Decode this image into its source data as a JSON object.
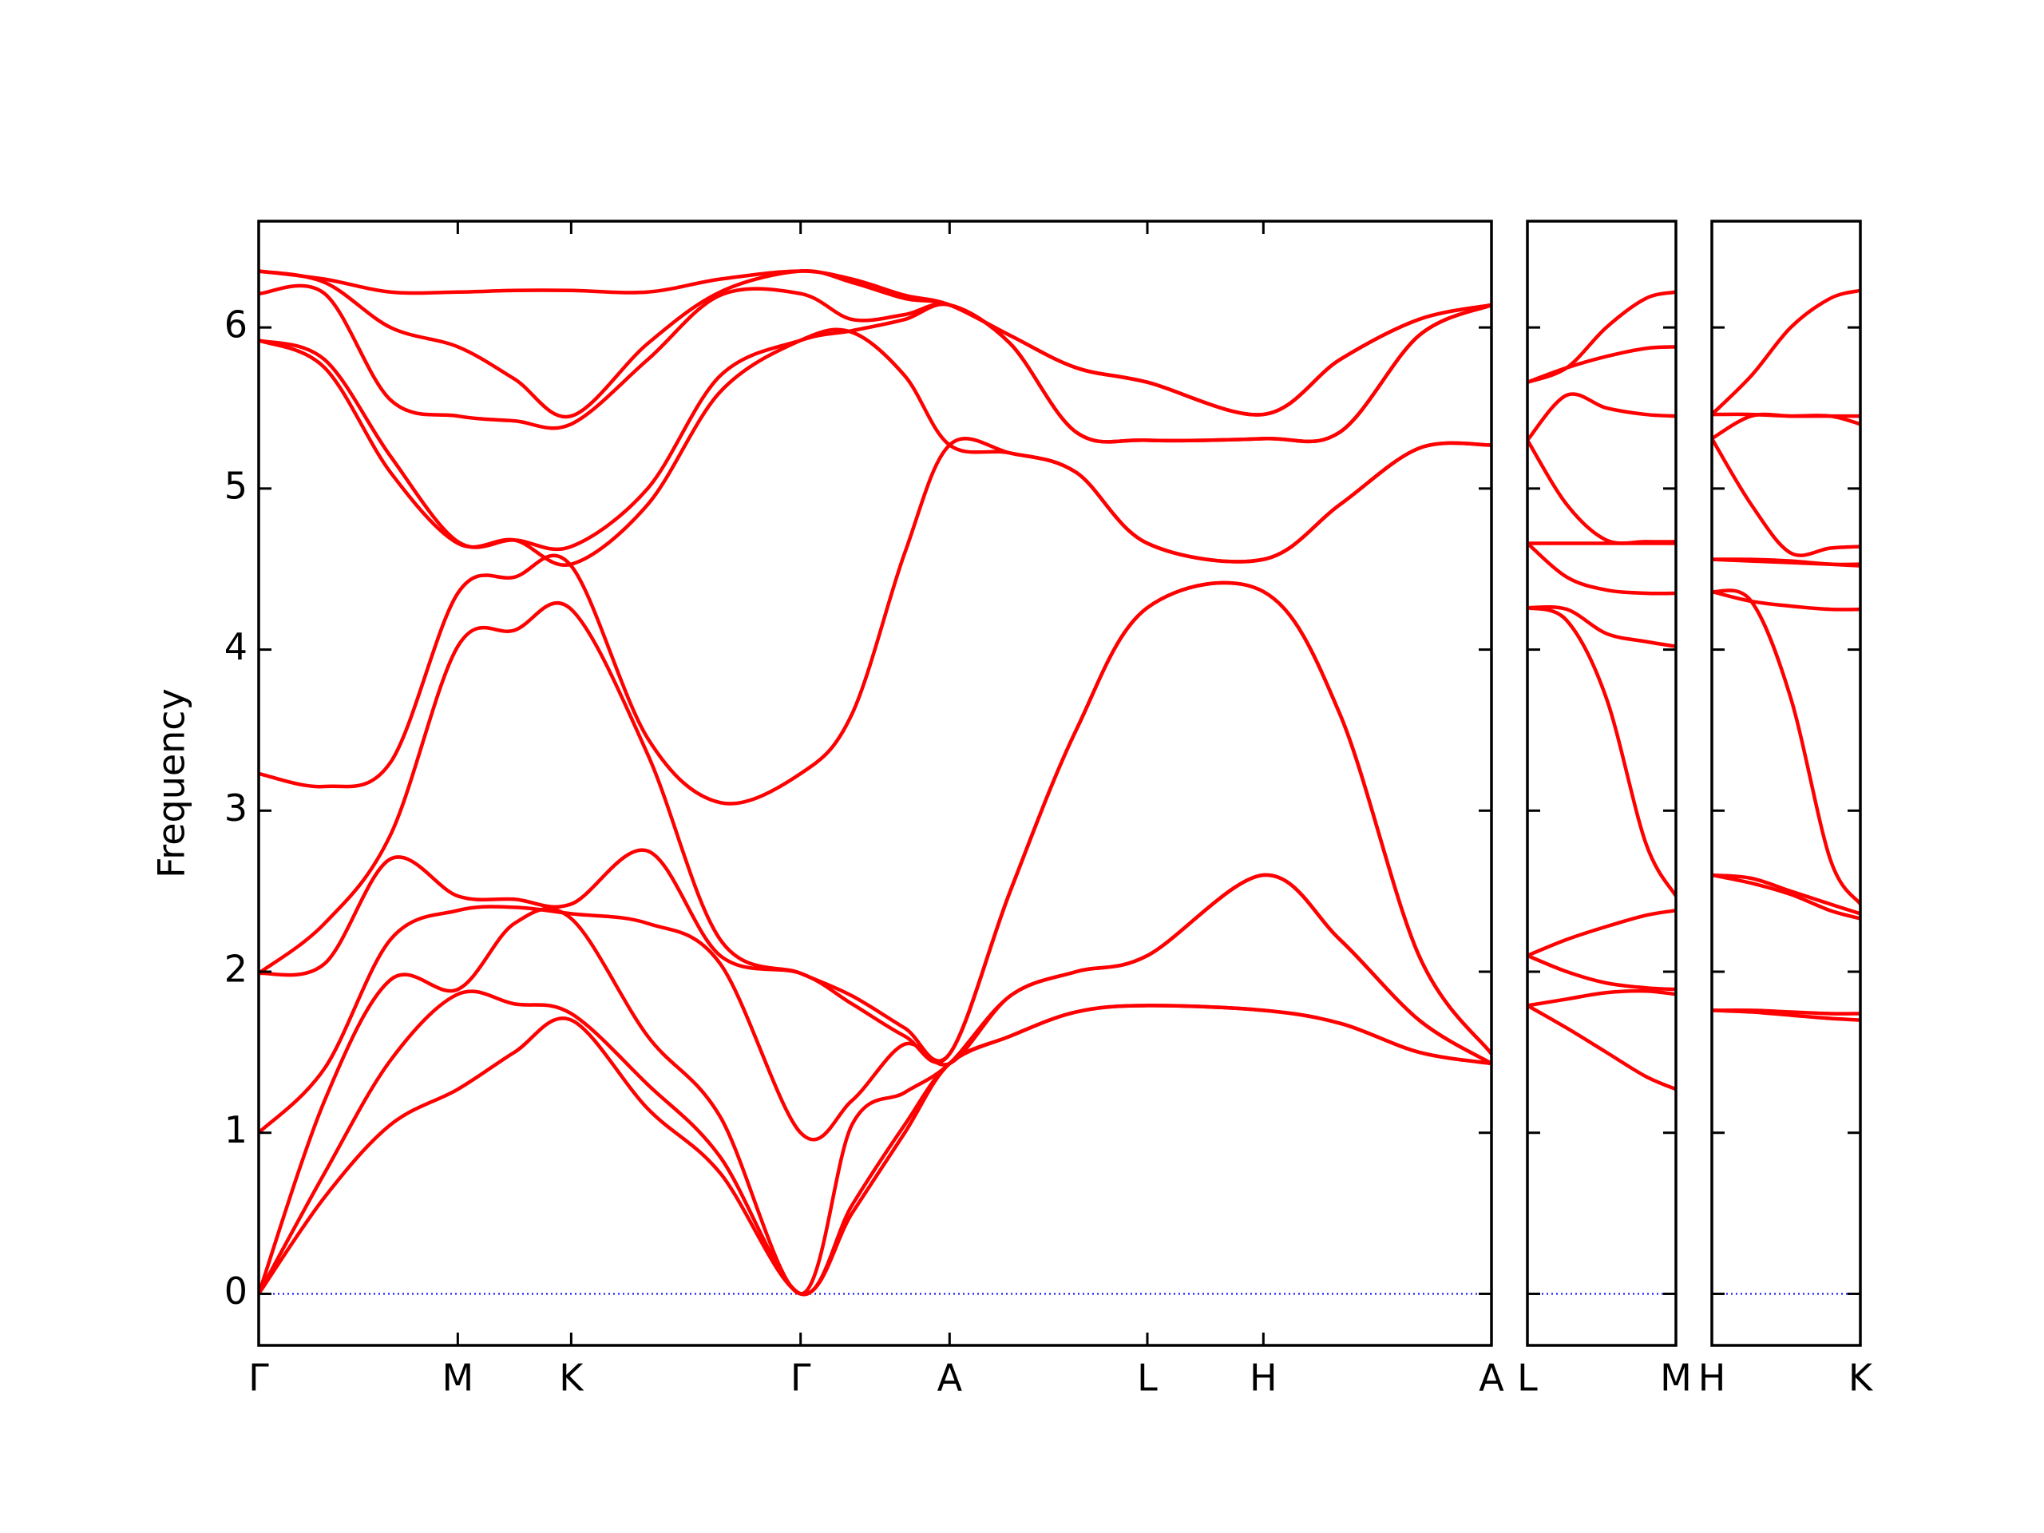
{
  "chart_data": [
    {
      "type": "line",
      "ylabel": "Frequency",
      "color": "#ff0000",
      "hlines": [
        0
      ],
      "hline_color": "#0000ff",
      "ytick_labels": true,
      "xlim": [
        0,
        9.35
      ],
      "ylim": [
        -0.32,
        6.66
      ],
      "yticks": [
        0,
        1,
        2,
        3,
        4,
        5,
        6
      ],
      "xticks": [
        {
          "value": 0,
          "label": "Γ"
        },
        {
          "value": 1.51,
          "label": "M"
        },
        {
          "value": 2.37,
          "label": "K"
        },
        {
          "value": 4.11,
          "label": "Γ"
        },
        {
          "value": 5.24,
          "label": "A"
        },
        {
          "value": 6.74,
          "label": "L"
        },
        {
          "value": 7.62,
          "label": "H"
        },
        {
          "value": 9.35,
          "label": "A"
        }
      ],
      "x": [
        0,
        0.5,
        1.0,
        1.51,
        1.94,
        2.37,
        2.95,
        3.5,
        4.11,
        4.5,
        4.9,
        5.24,
        5.7,
        6.2,
        6.74,
        7.62,
        8.2,
        8.8,
        9.35
      ],
      "series": [
        {
          "values": [
            0,
            0.6,
            1.05,
            1.27,
            1.5,
            1.7,
            1.15,
            0.75,
            0,
            0.5,
            1.0,
            1.43,
            1.6,
            1.75,
            1.79,
            1.76,
            1.68,
            1.5,
            1.43
          ]
        },
        {
          "values": [
            0,
            0.75,
            1.45,
            1.86,
            1.8,
            1.74,
            1.3,
            0.85,
            0,
            0.55,
            1.05,
            1.43,
            1.6,
            1.75,
            1.79,
            1.76,
            1.68,
            1.5,
            1.43
          ]
        },
        {
          "values": [
            0,
            1.2,
            1.95,
            1.89,
            2.3,
            2.33,
            1.6,
            1.1,
            0,
            1.05,
            1.25,
            1.43,
            1.85,
            2.0,
            2.1,
            2.6,
            2.2,
            1.7,
            1.43
          ]
        },
        {
          "values": [
            1.0,
            1.4,
            2.2,
            2.38,
            2.4,
            2.36,
            2.3,
            2.05,
            1.0,
            1.2,
            1.55,
            1.43,
            1.85,
            2.0,
            2.1,
            2.6,
            2.2,
            1.7,
            1.43
          ]
        },
        {
          "values": [
            1.99,
            2.05,
            2.7,
            2.47,
            2.45,
            2.42,
            2.75,
            2.1,
            1.99,
            1.8,
            1.6,
            1.49,
            2.5,
            3.5,
            4.26,
            4.36,
            3.6,
            2.1,
            1.49
          ]
        },
        {
          "values": [
            1.99,
            2.3,
            2.85,
            4.02,
            4.12,
            4.25,
            3.35,
            2.2,
            1.99,
            1.85,
            1.65,
            1.49,
            2.5,
            3.5,
            4.26,
            4.36,
            3.6,
            2.1,
            1.49
          ]
        },
        {
          "values": [
            3.23,
            3.15,
            3.3,
            4.35,
            4.45,
            4.52,
            3.45,
            3.05,
            3.23,
            3.6,
            4.6,
            5.27,
            5.22,
            5.1,
            4.66,
            4.56,
            4.9,
            5.25,
            5.27
          ]
        },
        {
          "values": [
            5.92,
            5.75,
            5.1,
            4.66,
            4.68,
            4.53,
            4.9,
            5.6,
            5.92,
            5.97,
            5.7,
            5.27,
            5.22,
            5.1,
            4.66,
            4.56,
            4.9,
            5.25,
            5.27
          ]
        },
        {
          "values": [
            5.92,
            5.8,
            5.2,
            4.67,
            4.68,
            4.64,
            5.0,
            5.7,
            5.92,
            5.98,
            6.05,
            6.14,
            5.9,
            5.35,
            5.3,
            5.31,
            5.35,
            5.95,
            6.14
          ]
        },
        {
          "values": [
            6.21,
            6.21,
            5.55,
            5.45,
            5.42,
            5.4,
            5.8,
            6.2,
            6.21,
            6.05,
            6.08,
            6.14,
            5.9,
            5.35,
            5.3,
            5.31,
            5.35,
            5.95,
            6.14
          ]
        },
        {
          "values": [
            6.35,
            6.28,
            6.0,
            5.88,
            5.68,
            5.45,
            5.9,
            6.22,
            6.35,
            6.28,
            6.18,
            6.14,
            5.95,
            5.75,
            5.66,
            5.46,
            5.8,
            6.05,
            6.14
          ]
        },
        {
          "values": [
            6.35,
            6.3,
            6.22,
            6.22,
            6.23,
            6.23,
            6.22,
            6.3,
            6.35,
            6.3,
            6.2,
            6.14,
            5.95,
            5.75,
            5.66,
            5.46,
            5.8,
            6.05,
            6.14
          ]
        }
      ]
    },
    {
      "type": "line",
      "color": "#ff0000",
      "hlines": [
        0
      ],
      "hline_color": "#0000ff",
      "ytick_labels": false,
      "xlim": [
        0,
        1.13
      ],
      "ylim": [
        -0.32,
        6.66
      ],
      "yticks": [
        0,
        1,
        2,
        3,
        4,
        5,
        6
      ],
      "xticks": [
        {
          "value": 0,
          "label": "L"
        },
        {
          "value": 1.13,
          "label": "M"
        }
      ],
      "x": [
        0,
        0.3,
        0.6,
        0.9,
        1.13
      ],
      "series": [
        {
          "values": [
            1.79,
            1.65,
            1.5,
            1.35,
            1.27
          ]
        },
        {
          "values": [
            1.79,
            1.83,
            1.87,
            1.88,
            1.86
          ]
        },
        {
          "values": [
            2.1,
            2.0,
            1.93,
            1.9,
            1.89
          ]
        },
        {
          "values": [
            2.1,
            2.2,
            2.28,
            2.35,
            2.38
          ]
        },
        {
          "values": [
            4.26,
            4.18,
            3.7,
            2.8,
            2.47
          ]
        },
        {
          "values": [
            4.26,
            4.25,
            4.1,
            4.05,
            4.02
          ]
        },
        {
          "values": [
            4.66,
            4.45,
            4.37,
            4.35,
            4.35
          ]
        },
        {
          "values": [
            4.66,
            4.66,
            4.66,
            4.66,
            4.66
          ]
        },
        {
          "values": [
            5.3,
            4.9,
            4.68,
            4.67,
            4.67
          ]
        },
        {
          "values": [
            5.3,
            5.58,
            5.5,
            5.46,
            5.45
          ]
        },
        {
          "values": [
            5.66,
            5.75,
            5.82,
            5.87,
            5.88
          ]
        },
        {
          "values": [
            5.66,
            5.75,
            6.0,
            6.18,
            6.22
          ]
        }
      ]
    },
    {
      "type": "line",
      "color": "#ff0000",
      "hlines": [
        0
      ],
      "hline_color": "#0000ff",
      "ytick_labels": false,
      "xlim": [
        0,
        1.13
      ],
      "ylim": [
        -0.32,
        6.66
      ],
      "yticks": [
        0,
        1,
        2,
        3,
        4,
        5,
        6
      ],
      "xticks": [
        {
          "value": 0,
          "label": "H"
        },
        {
          "value": 1.13,
          "label": "K"
        }
      ],
      "x": [
        0,
        0.3,
        0.6,
        0.9,
        1.13
      ],
      "series": [
        {
          "values": [
            1.76,
            1.75,
            1.73,
            1.71,
            1.7
          ]
        },
        {
          "values": [
            1.76,
            1.76,
            1.75,
            1.74,
            1.74
          ]
        },
        {
          "values": [
            2.6,
            2.55,
            2.48,
            2.38,
            2.33
          ]
        },
        {
          "values": [
            2.6,
            2.58,
            2.5,
            2.42,
            2.36
          ]
        },
        {
          "values": [
            4.36,
            4.3,
            3.7,
            2.7,
            2.42
          ]
        },
        {
          "values": [
            4.36,
            4.3,
            4.27,
            4.25,
            4.25
          ]
        },
        {
          "values": [
            4.56,
            4.55,
            4.54,
            4.53,
            4.52
          ]
        },
        {
          "values": [
            4.56,
            4.56,
            4.55,
            4.53,
            4.53
          ]
        },
        {
          "values": [
            5.31,
            4.9,
            4.6,
            4.63,
            4.64
          ]
        },
        {
          "values": [
            5.31,
            5.45,
            5.45,
            5.45,
            5.4
          ]
        },
        {
          "values": [
            5.46,
            5.46,
            5.45,
            5.45,
            5.45
          ]
        },
        {
          "values": [
            5.46,
            5.7,
            6.0,
            6.18,
            6.23
          ]
        }
      ]
    }
  ]
}
